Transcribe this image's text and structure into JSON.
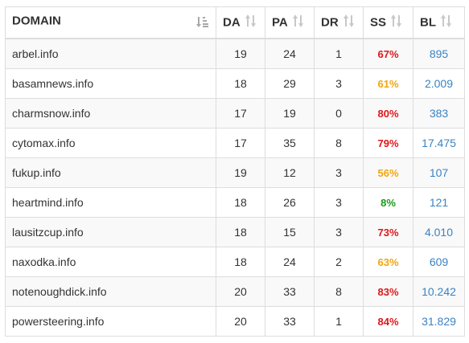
{
  "table": {
    "headers": {
      "domain": "DOMAIN",
      "da": "DA",
      "pa": "PA",
      "dr": "DR",
      "ss": "SS",
      "bl": "BL"
    },
    "rows": [
      {
        "domain": "arbel.info",
        "da": "19",
        "pa": "24",
        "dr": "1",
        "ss": "67%",
        "ss_level": "red",
        "bl": "895"
      },
      {
        "domain": "basamnews.info",
        "da": "18",
        "pa": "29",
        "dr": "3",
        "ss": "61%",
        "ss_level": "orange",
        "bl": "2.009"
      },
      {
        "domain": "charmsnow.info",
        "da": "17",
        "pa": "19",
        "dr": "0",
        "ss": "80%",
        "ss_level": "red",
        "bl": "383"
      },
      {
        "domain": "cytomax.info",
        "da": "17",
        "pa": "35",
        "dr": "8",
        "ss": "79%",
        "ss_level": "red",
        "bl": "17.475"
      },
      {
        "domain": "fukup.info",
        "da": "19",
        "pa": "12",
        "dr": "3",
        "ss": "56%",
        "ss_level": "orange",
        "bl": "107"
      },
      {
        "domain": "heartmind.info",
        "da": "18",
        "pa": "26",
        "dr": "3",
        "ss": "8%",
        "ss_level": "green",
        "bl": "121"
      },
      {
        "domain": "lausitzcup.info",
        "da": "18",
        "pa": "15",
        "dr": "3",
        "ss": "73%",
        "ss_level": "red",
        "bl": "4.010"
      },
      {
        "domain": "naxodka.info",
        "da": "18",
        "pa": "24",
        "dr": "2",
        "ss": "63%",
        "ss_level": "orange",
        "bl": "609"
      },
      {
        "domain": "notenoughdick.info",
        "da": "20",
        "pa": "33",
        "dr": "8",
        "ss": "83%",
        "ss_level": "red",
        "bl": "10.242"
      },
      {
        "domain": "powersteering.info",
        "da": "20",
        "pa": "33",
        "dr": "1",
        "ss": "84%",
        "ss_level": "red",
        "bl": "31.829"
      }
    ]
  },
  "colors": {
    "red": "#e0161b",
    "orange": "#f2a50c",
    "green": "#179b17",
    "link_blue": "#3a82c4",
    "sort_icon": "#c8c8c8"
  },
  "icons": {
    "domain_sort": "sort-alpha-icon",
    "column_sort": "sort-updown-icon"
  }
}
